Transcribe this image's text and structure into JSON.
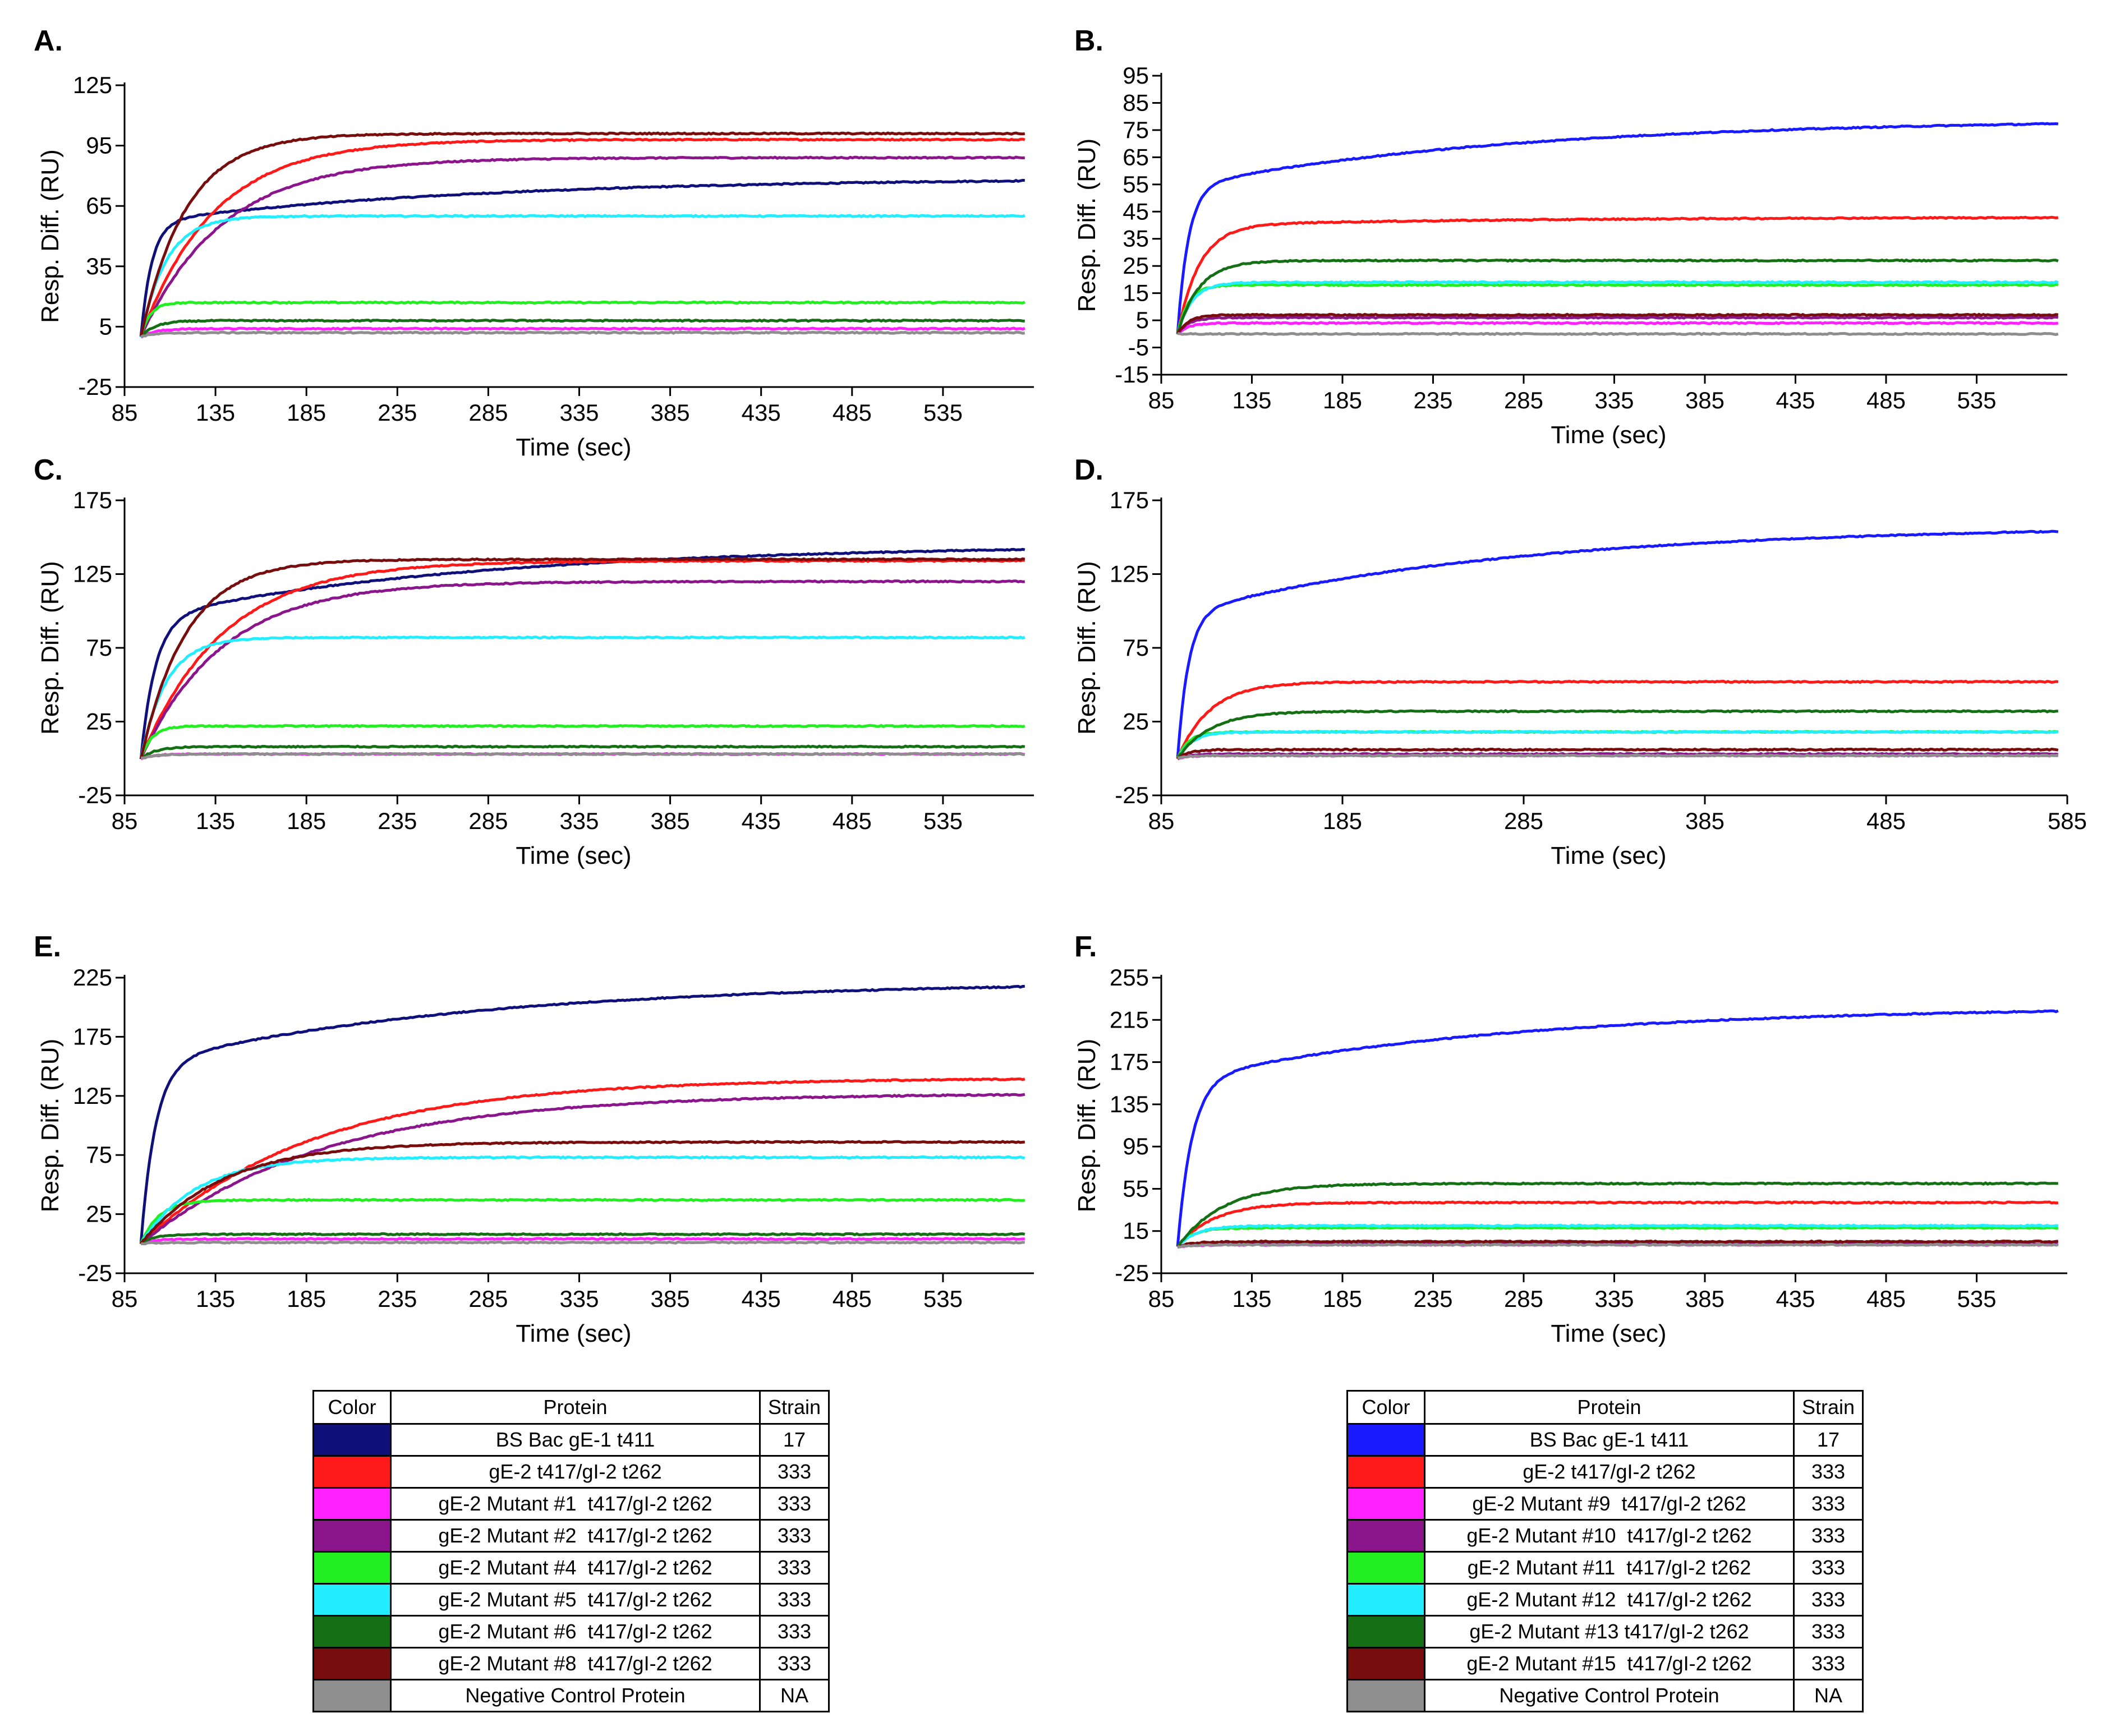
{
  "colors": {
    "navy": "#10107a",
    "blue": "#1a1aff",
    "red": "#ff1a1a",
    "magenta": "#ff22ff",
    "purple": "#8b158b",
    "lime": "#22ee22",
    "cyan": "#22eeff",
    "darkgreen": "#157015",
    "maroon": "#770d0d",
    "gray": "#8e8e8e"
  },
  "chart_data": [
    {
      "type": "line",
      "panel": "A.",
      "xlabel": "Time (sec)",
      "ylabel": "Resp. Diff. (RU)",
      "xlim": [
        85,
        585
      ],
      "ylim": [
        -25,
        125
      ],
      "xticks": [
        85,
        135,
        185,
        235,
        285,
        335,
        385,
        435,
        485,
        535
      ],
      "yticks": [
        -25,
        5,
        35,
        65,
        95,
        125
      ],
      "series": [
        {
          "name": "BS Bac gE-1 t411",
          "color_key": "navy",
          "plateau": 79,
          "tau": 6,
          "slow": 22
        },
        {
          "name": "gE-2 t417/gI-2 t262",
          "color_key": "red",
          "plateau": 98,
          "tau": 40,
          "slow": 0
        },
        {
          "name": "gE-2 Mutant #1 t417/gI-2 t262",
          "color_key": "magenta",
          "plateau": 4,
          "tau": 8,
          "slow": 0
        },
        {
          "name": "gE-2 Mutant #2 t417/gI-2 t262",
          "color_key": "purple",
          "plateau": 89,
          "tau": 45,
          "slow": 0
        },
        {
          "name": "gE-2 Mutant #4 t417/gI-2 t262",
          "color_key": "lime",
          "plateau": 17,
          "tau": 5,
          "slow": 0
        },
        {
          "name": "gE-2 Mutant #5 t417/gI-2 t262",
          "color_key": "cyan",
          "plateau": 60,
          "tau": 14,
          "slow": 0
        },
        {
          "name": "gE-2 Mutant #6 t417/gI-2 t262",
          "color_key": "darkgreen",
          "plateau": 8,
          "tau": 8,
          "slow": 0
        },
        {
          "name": "gE-2 Mutant #8 t417/gI-2 t262",
          "color_key": "maroon",
          "plateau": 101,
          "tau": 25,
          "slow": 0
        },
        {
          "name": "Negative Control Protein",
          "color_key": "gray",
          "plateau": 2,
          "tau": 8,
          "slow": 0
        }
      ]
    },
    {
      "type": "line",
      "panel": "B.",
      "xlabel": "Time (sec)",
      "ylabel": "Resp. Diff. (RU)",
      "xlim": [
        85,
        585
      ],
      "ylim": [
        -15,
        95
      ],
      "xticks": [
        85,
        135,
        185,
        235,
        285,
        335,
        385,
        435,
        485,
        535
      ],
      "yticks": [
        -15,
        -5,
        5,
        15,
        25,
        35,
        45,
        55,
        65,
        75,
        85,
        95
      ],
      "series": [
        {
          "name": "BS Bac gE-1 t411",
          "color_key": "blue",
          "plateau": 79,
          "tau": 6,
          "slow": 25
        },
        {
          "name": "gE-2 t417/gI-2 t262",
          "color_key": "red",
          "plateau": 43,
          "tau": 12,
          "slow": 3
        },
        {
          "name": "gE-2 Mutant #9 t417/gI-2 t262",
          "color_key": "magenta",
          "plateau": 4,
          "tau": 6,
          "slow": 0
        },
        {
          "name": "gE-2 Mutant #10 t417/gI-2 t262",
          "color_key": "purple",
          "plateau": 6,
          "tau": 6,
          "slow": 0
        },
        {
          "name": "gE-2 Mutant #11 t417/gI-2 t262",
          "color_key": "lime",
          "plateau": 18,
          "tau": 6,
          "slow": 0
        },
        {
          "name": "gE-2 Mutant #12 t417/gI-2 t262",
          "color_key": "cyan",
          "plateau": 19,
          "tau": 8,
          "slow": 0
        },
        {
          "name": "gE-2 Mutant #13 t417/gI-2 t262",
          "color_key": "darkgreen",
          "plateau": 27,
          "tau": 12,
          "slow": 0
        },
        {
          "name": "gE-2 Mutant #15 t417/gI-2 t262",
          "color_key": "maroon",
          "plateau": 7,
          "tau": 6,
          "slow": 0
        },
        {
          "name": "Negative Control Protein",
          "color_key": "gray",
          "plateau": 0,
          "tau": 6,
          "slow": 0
        }
      ]
    },
    {
      "type": "line",
      "panel": "C.",
      "xlabel": "Time (sec)",
      "ylabel": "Resp. Diff. (RU)",
      "xlim": [
        85,
        585
      ],
      "ylim": [
        -25,
        175
      ],
      "xticks": [
        85,
        135,
        185,
        235,
        285,
        335,
        385,
        435,
        485,
        535
      ],
      "yticks": [
        -25,
        25,
        75,
        125,
        175
      ],
      "series": [
        {
          "name": "BS Bac gE-1 t411",
          "color_key": "navy",
          "plateau": 145,
          "tau": 8,
          "slow": 50
        },
        {
          "name": "gE-2 t417/gI-2 t262",
          "color_key": "red",
          "plateau": 134,
          "tau": 45,
          "slow": 0
        },
        {
          "name": "gE-2 Mutant #1 t417/gI-2 t262",
          "color_key": "magenta",
          "plateau": 3,
          "tau": 8,
          "slow": 0
        },
        {
          "name": "gE-2 Mutant #2 t417/gI-2 t262",
          "color_key": "purple",
          "plateau": 120,
          "tau": 45,
          "slow": 0
        },
        {
          "name": "gE-2 Mutant #4 t417/gI-2 t262",
          "color_key": "lime",
          "plateau": 22,
          "tau": 6,
          "slow": 0
        },
        {
          "name": "gE-2 Mutant #5 t417/gI-2 t262",
          "color_key": "cyan",
          "plateau": 82,
          "tau": 14,
          "slow": 0
        },
        {
          "name": "gE-2 Mutant #6 t417/gI-2 t262",
          "color_key": "darkgreen",
          "plateau": 8,
          "tau": 8,
          "slow": 0
        },
        {
          "name": "gE-2 Mutant #8 t417/gI-2 t262",
          "color_key": "maroon",
          "plateau": 135,
          "tau": 25,
          "slow": 0
        },
        {
          "name": "Negative Control Protein",
          "color_key": "gray",
          "plateau": 3,
          "tau": 8,
          "slow": 0
        }
      ]
    },
    {
      "type": "line",
      "panel": "D.",
      "xlabel": "Time (sec)",
      "ylabel": "Resp. Diff. (RU)",
      "xlim": [
        85,
        585
      ],
      "ylim": [
        -25,
        175
      ],
      "xticks": [
        85,
        185,
        285,
        385,
        485,
        585
      ],
      "yticks": [
        -25,
        25,
        75,
        125,
        175
      ],
      "series": [
        {
          "name": "BS Bac gE-1 t411",
          "color_key": "blue",
          "plateau": 158,
          "tau": 6,
          "slow": 60
        },
        {
          "name": "gE-2 t417/gI-2 t262",
          "color_key": "red",
          "plateau": 52,
          "tau": 18,
          "slow": 0
        },
        {
          "name": "gE-2 Mutant #9 t417/gI-2 t262",
          "color_key": "magenta",
          "plateau": 2,
          "tau": 6,
          "slow": 0
        },
        {
          "name": "gE-2 Mutant #10 t417/gI-2 t262",
          "color_key": "purple",
          "plateau": 3,
          "tau": 6,
          "slow": 0
        },
        {
          "name": "gE-2 Mutant #11 t417/gI-2 t262",
          "color_key": "lime",
          "plateau": 18,
          "tau": 6,
          "slow": 0
        },
        {
          "name": "gE-2 Mutant #12 t417/gI-2 t262",
          "color_key": "cyan",
          "plateau": 18,
          "tau": 8,
          "slow": 0
        },
        {
          "name": "gE-2 Mutant #13 t417/gI-2 t262",
          "color_key": "darkgreen",
          "plateau": 32,
          "tau": 18,
          "slow": 0
        },
        {
          "name": "gE-2 Mutant #15 t417/gI-2 t262",
          "color_key": "maroon",
          "plateau": 6,
          "tau": 6,
          "slow": 0
        },
        {
          "name": "Negative Control Protein",
          "color_key": "gray",
          "plateau": 2,
          "tau": 6,
          "slow": 0
        }
      ]
    },
    {
      "type": "line",
      "panel": "E.",
      "xlabel": "Time (sec)",
      "ylabel": "Resp. Diff. (RU)",
      "xlim": [
        85,
        585
      ],
      "ylim": [
        -25,
        225
      ],
      "xticks": [
        85,
        135,
        185,
        235,
        285,
        335,
        385,
        435,
        485,
        535
      ],
      "yticks": [
        -25,
        25,
        75,
        125,
        175,
        225
      ],
      "series": [
        {
          "name": "BS Bac gE-1 t411",
          "color_key": "navy",
          "plateau": 222,
          "tau": 8,
          "slow": 70
        },
        {
          "name": "gE-2 t417/gI-2 t262",
          "color_key": "red",
          "plateau": 140,
          "tau": 95,
          "slow": 0
        },
        {
          "name": "gE-2 Mutant #1 t417/gI-2 t262",
          "color_key": "magenta",
          "plateau": 4,
          "tau": 8,
          "slow": 0
        },
        {
          "name": "gE-2 Mutant #2 t417/gI-2 t262",
          "color_key": "purple",
          "plateau": 127,
          "tau": 100,
          "slow": 0
        },
        {
          "name": "gE-2 Mutant #4 t417/gI-2 t262",
          "color_key": "lime",
          "plateau": 37,
          "tau": 10,
          "slow": 0
        },
        {
          "name": "gE-2 Mutant #5 t417/gI-2 t262",
          "color_key": "cyan",
          "plateau": 73,
          "tau": 30,
          "slow": 0
        },
        {
          "name": "gE-2 Mutant #6 t417/gI-2 t262",
          "color_key": "darkgreen",
          "plateau": 8,
          "tau": 8,
          "slow": 0
        },
        {
          "name": "gE-2 Mutant #8 t417/gI-2 t262",
          "color_key": "maroon",
          "plateau": 86,
          "tau": 45,
          "slow": 0
        },
        {
          "name": "Negative Control Protein",
          "color_key": "gray",
          "plateau": 1,
          "tau": 8,
          "slow": 0
        }
      ]
    },
    {
      "type": "line",
      "panel": "F.",
      "xlabel": "Time (sec)",
      "ylabel": "Resp. Diff. (RU)",
      "xlim": [
        85,
        585
      ],
      "ylim": [
        -25,
        255
      ],
      "xticks": [
        85,
        135,
        185,
        235,
        285,
        335,
        385,
        435,
        485,
        535
      ],
      "yticks": [
        -25,
        15,
        55,
        95,
        135,
        175,
        215,
        255
      ],
      "series": [
        {
          "name": "BS Bac gE-1 t411",
          "color_key": "blue",
          "plateau": 228,
          "tau": 8,
          "slow": 70
        },
        {
          "name": "gE-2 t417/gI-2 t262",
          "color_key": "red",
          "plateau": 42,
          "tau": 20,
          "slow": 0
        },
        {
          "name": "gE-2 Mutant #9 t417/gI-2 t262",
          "color_key": "magenta",
          "plateau": 2,
          "tau": 8,
          "slow": 0
        },
        {
          "name": "gE-2 Mutant #10 t417/gI-2 t262",
          "color_key": "purple",
          "plateau": 3,
          "tau": 8,
          "slow": 0
        },
        {
          "name": "gE-2 Mutant #11 t417/gI-2 t262",
          "color_key": "lime",
          "plateau": 18,
          "tau": 8,
          "slow": 0
        },
        {
          "name": "gE-2 Mutant #12 t417/gI-2 t262",
          "color_key": "cyan",
          "plateau": 20,
          "tau": 10,
          "slow": 0
        },
        {
          "name": "gE-2 Mutant #13 t417/gI-2 t262",
          "color_key": "darkgreen",
          "plateau": 60,
          "tau": 25,
          "slow": 0
        },
        {
          "name": "gE-2 Mutant #15 t417/gI-2 t262",
          "color_key": "maroon",
          "plateau": 5,
          "tau": 8,
          "slow": 0
        },
        {
          "name": "Negative Control Protein",
          "color_key": "gray",
          "plateau": 2,
          "tau": 8,
          "slow": 0
        }
      ]
    }
  ],
  "legends": [
    {
      "headers": {
        "color": "Color",
        "protein": "Protein",
        "strain": "Strain"
      },
      "rows": [
        {
          "color_key": "navy",
          "protein": "BS Bac gE-1 t411",
          "strain": "17"
        },
        {
          "color_key": "red",
          "protein": "gE-2 t417/gI-2 t262",
          "strain": "333"
        },
        {
          "color_key": "magenta",
          "protein": "gE-2 Mutant #1  t417/gI-2 t262",
          "strain": "333"
        },
        {
          "color_key": "purple",
          "protein": "gE-2 Mutant #2  t417/gI-2 t262",
          "strain": "333"
        },
        {
          "color_key": "lime",
          "protein": "gE-2 Mutant #4  t417/gI-2 t262",
          "strain": "333"
        },
        {
          "color_key": "cyan",
          "protein": "gE-2 Mutant #5  t417/gI-2 t262",
          "strain": "333"
        },
        {
          "color_key": "darkgreen",
          "protein": "gE-2 Mutant #6  t417/gI-2 t262",
          "strain": "333"
        },
        {
          "color_key": "maroon",
          "protein": "gE-2 Mutant #8  t417/gI-2 t262",
          "strain": "333"
        },
        {
          "color_key": "gray",
          "protein": "Negative Control Protein",
          "strain": "NA"
        }
      ]
    },
    {
      "headers": {
        "color": "Color",
        "protein": "Protein",
        "strain": "Strain"
      },
      "rows": [
        {
          "color_key": "blue",
          "protein": "BS Bac gE-1 t411",
          "strain": "17"
        },
        {
          "color_key": "red",
          "protein": "gE-2 t417/gI-2 t262",
          "strain": "333"
        },
        {
          "color_key": "magenta",
          "protein": "gE-2 Mutant #9  t417/gI-2 t262",
          "strain": "333"
        },
        {
          "color_key": "purple",
          "protein": "gE-2 Mutant #10  t417/gI-2 t262",
          "strain": "333"
        },
        {
          "color_key": "lime",
          "protein": "gE-2 Mutant #11  t417/gI-2 t262",
          "strain": "333"
        },
        {
          "color_key": "cyan",
          "protein": "gE-2 Mutant #12  t417/gI-2 t262",
          "strain": "333"
        },
        {
          "color_key": "darkgreen",
          "protein": "gE-2 Mutant #13 t417/gI-2 t262",
          "strain": "333"
        },
        {
          "color_key": "maroon",
          "protein": "gE-2 Mutant #15  t417/gI-2 t262",
          "strain": "333"
        },
        {
          "color_key": "gray",
          "protein": "Negative Control Protein",
          "strain": "NA"
        }
      ]
    }
  ]
}
